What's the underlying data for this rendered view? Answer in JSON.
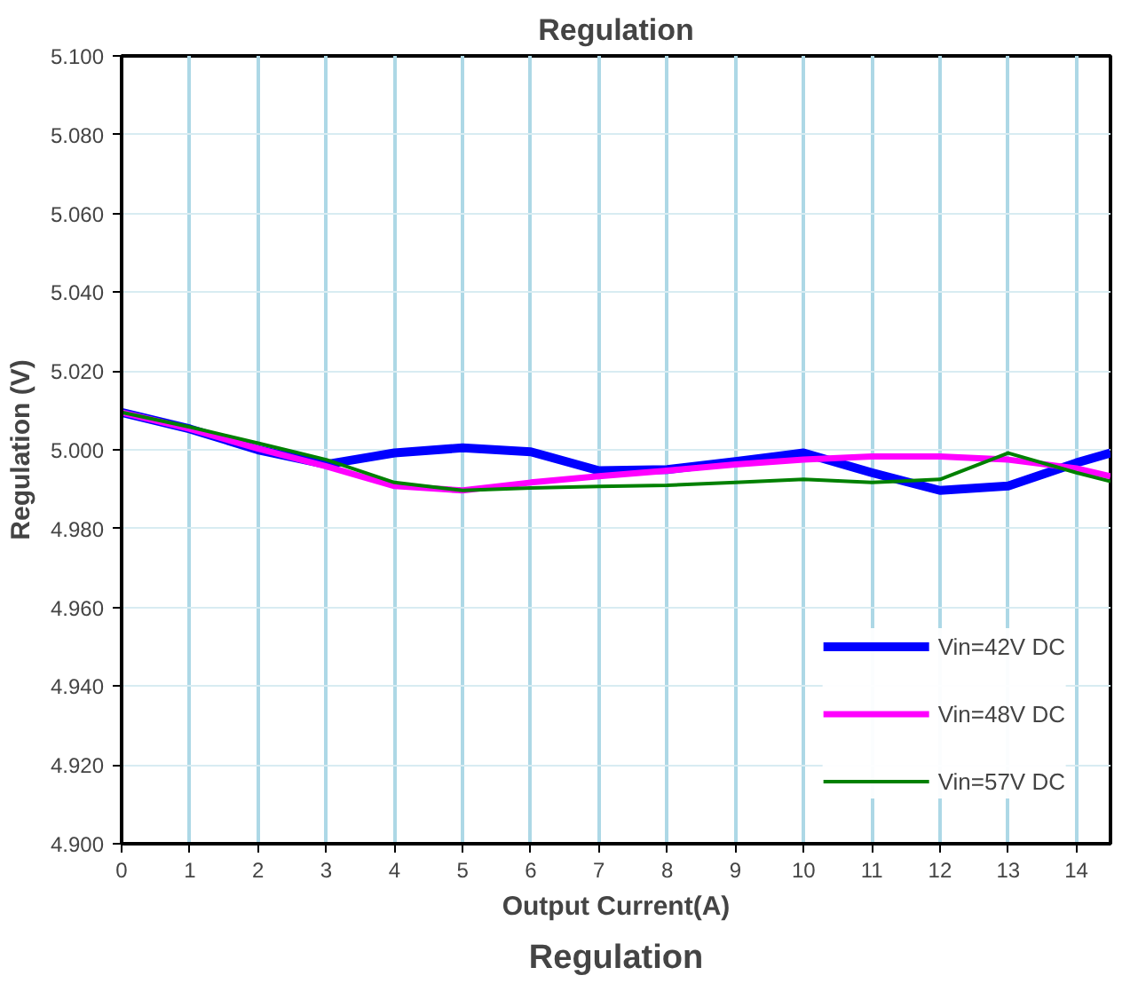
{
  "chart_data": {
    "type": "line",
    "title": "Regulation",
    "xlabel": "Output Current(A)",
    "ylabel": "Regulation (V)",
    "annotations": [
      "Regulation"
    ],
    "x": [
      0,
      1,
      2,
      3,
      4,
      5,
      6,
      7,
      8,
      9,
      10,
      11,
      12,
      13,
      14,
      14.5
    ],
    "series": [
      {
        "name": "Vin=42V DC",
        "color": "#0000ff",
        "values": [
          5.0095,
          5.0053,
          5.0,
          4.9963,
          4.9992,
          5.0005,
          4.9995,
          4.9947,
          4.995,
          4.997,
          4.9992,
          4.9942,
          4.9897,
          4.9908,
          4.9967,
          4.9992
        ]
      },
      {
        "name": "Vin=48V DC",
        "color": "#ff00ff",
        "values": [
          5.0095,
          5.0053,
          5.0003,
          4.9958,
          4.9908,
          4.9897,
          4.9917,
          4.9933,
          4.9947,
          4.9963,
          4.9975,
          4.9983,
          4.9983,
          4.9975,
          4.9953,
          4.9933
        ]
      },
      {
        "name": "Vin=57V DC",
        "color": "#008000",
        "values": [
          5.0095,
          5.0058,
          5.0017,
          4.9975,
          4.9917,
          4.9897,
          4.9903,
          4.9907,
          4.991,
          4.9917,
          4.9925,
          4.9917,
          4.9925,
          4.9992,
          4.9942,
          4.992
        ]
      }
    ],
    "xlim": [
      0,
      14.5
    ],
    "xticks": [
      0,
      1,
      2,
      3,
      4,
      5,
      6,
      7,
      8,
      9,
      10,
      11,
      12,
      13,
      14
    ],
    "ylim": [
      4.9,
      5.1
    ],
    "yticks": [
      {
        "value": 4.9,
        "label": "4.900"
      },
      {
        "value": 4.92,
        "label": "4.920"
      },
      {
        "value": 4.94,
        "label": "4.940"
      },
      {
        "value": 4.96,
        "label": "4.960"
      },
      {
        "value": 4.98,
        "label": "4.980"
      },
      {
        "value": 5.0,
        "label": "5.000"
      },
      {
        "value": 5.02,
        "label": "5.020"
      },
      {
        "value": 5.04,
        "label": "5.040"
      },
      {
        "value": 5.06,
        "label": "5.060"
      },
      {
        "value": 5.08,
        "label": "5.080"
      },
      {
        "value": 5.1,
        "label": "5.100"
      }
    ],
    "grid": true,
    "legend": "bottom right",
    "line_style": "solid",
    "marker": "none"
  }
}
